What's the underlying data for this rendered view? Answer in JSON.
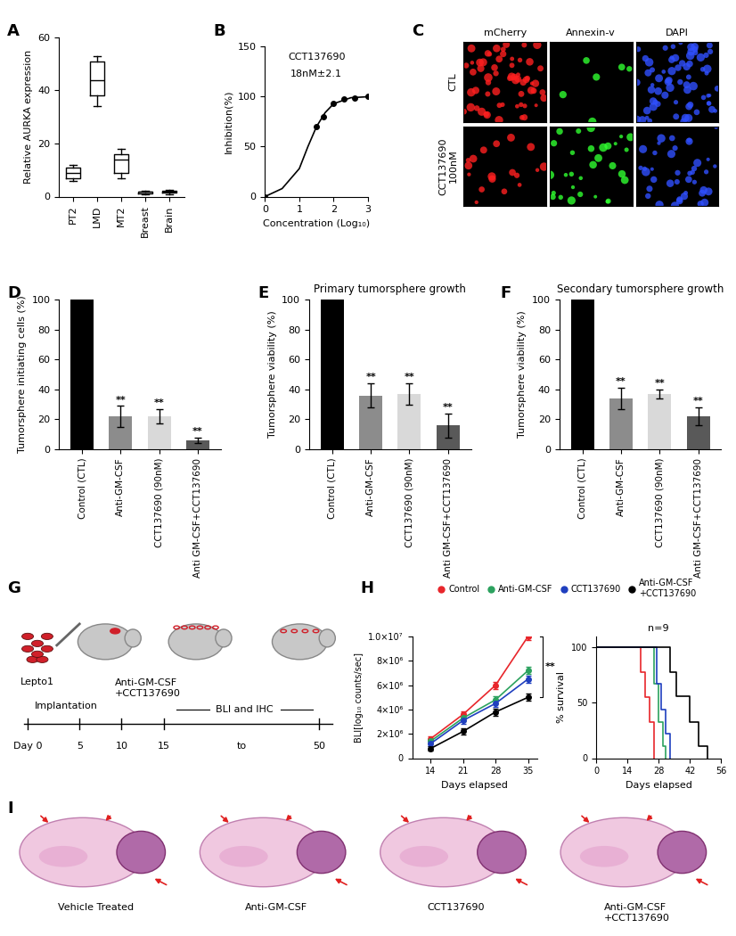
{
  "panel_letters": [
    "A",
    "B",
    "C",
    "D",
    "E",
    "F",
    "G",
    "H",
    "I"
  ],
  "chart_data": [
    {
      "type": "box",
      "categories": [
        "PT2",
        "LMD",
        "MT2",
        "Breast",
        "Brain"
      ],
      "y_label": "Relative AURKA expression",
      "ylim": [
        0,
        60
      ],
      "yticks": [
        0,
        20,
        40,
        60
      ],
      "boxes": [
        {
          "min": 6,
          "q1": 7,
          "median": 9,
          "q3": 11,
          "max": 12
        },
        {
          "min": 34,
          "q1": 38,
          "median": 44,
          "q3": 51,
          "max": 53
        },
        {
          "min": 7,
          "q1": 9,
          "median": 14,
          "q3": 16,
          "max": 18
        },
        {
          "min": 1,
          "q1": 1.3,
          "median": 1.7,
          "q3": 2,
          "max": 2.3
        },
        {
          "min": 1,
          "q1": 1.4,
          "median": 1.8,
          "q3": 2.1,
          "max": 2.5
        }
      ],
      "color": "#000000"
    },
    {
      "type": "line",
      "title": "CCT137690",
      "subtitle": "18nM±2.1",
      "x_label": "Concentration (Log₁₀)",
      "y_label": "Inhibition(%)",
      "xlim": [
        0,
        3
      ],
      "xticks": [
        0,
        1,
        2,
        3
      ],
      "ylim": [
        0,
        150
      ],
      "yticks": [
        0,
        50,
        100,
        150
      ],
      "x": [
        0,
        1.5,
        1.7,
        2.0,
        2.3,
        2.6,
        3.0
      ],
      "values": [
        0,
        70,
        80,
        93,
        98,
        99,
        100
      ],
      "curve": {
        "x": [
          0,
          0.5,
          1.0,
          1.25,
          1.5,
          1.75,
          2.0,
          2.5,
          3.0
        ],
        "values": [
          0,
          8,
          28,
          50,
          70,
          84,
          93,
          99,
          100
        ]
      },
      "marker": "circle",
      "color": "#000000"
    },
    {
      "type": "bar",
      "categories": [
        "Control (CTL)",
        "Anti-GM-CSF",
        "CCT137690 (90nM)",
        "Anti GM-CSF+CCT137690"
      ],
      "y_label": "Tumorsphere initiating cells (%)",
      "ylim": [
        0,
        100
      ],
      "yticks": [
        0,
        20,
        40,
        60,
        80,
        100
      ],
      "values": [
        100,
        22,
        22,
        6
      ],
      "errors": [
        0,
        7,
        5,
        2
      ],
      "significance": [
        null,
        "**",
        "**",
        "**"
      ],
      "colors": [
        "#000000",
        "#8c8c8c",
        "#d9d9d9",
        "#595959"
      ]
    },
    {
      "type": "bar",
      "title": "Primary tumorsphere growth",
      "categories": [
        "Control (CTL)",
        "Anti-GM-CSF",
        "CCT137690 (90nM)",
        "Anti GM-CSF+CCT137690"
      ],
      "y_label": "Tumorsphere viability (%)",
      "ylim": [
        0,
        100
      ],
      "yticks": [
        0,
        20,
        40,
        60,
        80,
        100
      ],
      "values": [
        100,
        36,
        37,
        16
      ],
      "errors": [
        0,
        8,
        7,
        8
      ],
      "significance": [
        null,
        "**",
        "**",
        "**"
      ],
      "colors": [
        "#000000",
        "#8c8c8c",
        "#d9d9d9",
        "#595959"
      ]
    },
    {
      "type": "bar",
      "title": "Secondary tumorsphere growth",
      "categories": [
        "Control (CTL)",
        "Anti-GM-CSF",
        "CCT137690 (90nM)",
        "Anti GM-CSF+CCT137690"
      ],
      "y_label": "Tumorsphere viability (%)",
      "ylim": [
        0,
        100
      ],
      "yticks": [
        0,
        20,
        40,
        60,
        80,
        100
      ],
      "values": [
        100,
        34,
        37,
        22
      ],
      "errors": [
        0,
        7,
        3,
        6
      ],
      "significance": [
        null,
        "**",
        "**",
        "**"
      ],
      "colors": [
        "#000000",
        "#8c8c8c",
        "#d9d9d9",
        "#595959"
      ]
    },
    {
      "type": "line",
      "x_label": "Days elapsed",
      "y_label": "BLI[log₁₀ counts/sec]",
      "x": [
        14,
        21,
        28,
        35
      ],
      "xlim": [
        10,
        37
      ],
      "xticks": [
        14,
        21,
        28,
        35
      ],
      "ylim": [
        0,
        10000000
      ],
      "yticks": [
        0,
        {
          "value": 2000000,
          "label": "2×10⁶"
        },
        {
          "value": 4000000,
          "label": "4×10⁶"
        },
        {
          "value": 6000000,
          "label": "6×10⁶"
        },
        {
          "value": 8000000,
          "label": "8×10⁶"
        },
        {
          "value": 10000000,
          "label": "1.0×10⁷"
        }
      ],
      "legend": "upper center",
      "annotations": [
        "**"
      ],
      "series": [
        {
          "name": "Control",
          "color": "#e8262b",
          "marker": "circle",
          "values": [
            1600000,
            3600000,
            6000000,
            10000000
          ],
          "errors": [
            200000,
            250000,
            300000,
            300000
          ]
        },
        {
          "name": "Anti-GM-CSF",
          "color": "#2ca25f",
          "marker": "circle",
          "values": [
            1400000,
            3300000,
            4800000,
            7200000
          ],
          "errors": [
            200000,
            250000,
            300000,
            300000
          ]
        },
        {
          "name": "CCT137690",
          "color": "#1f3fbf",
          "marker": "circle",
          "values": [
            1200000,
            3100000,
            4500000,
            6500000
          ],
          "errors": [
            200000,
            250000,
            300000,
            300000
          ]
        },
        {
          "name": "Anti-GM-CSF\n+CCT137690",
          "color": "#000000",
          "marker": "circle",
          "values": [
            800000,
            2200000,
            3800000,
            5000000
          ],
          "errors": [
            200000,
            250000,
            300000,
            300000
          ]
        }
      ]
    },
    {
      "type": "step",
      "subtitle": "n=9",
      "x_label": "Days elapsed",
      "y_label": "% survival",
      "xlim": [
        0,
        56
      ],
      "xticks": [
        0,
        14,
        28,
        42,
        56
      ],
      "ylim": [
        0,
        110
      ],
      "yticks": [
        0,
        50,
        100
      ],
      "line_style": "solid",
      "series": [
        {
          "name": "Control",
          "color": "#e8262b",
          "x": [
            0,
            20,
            22,
            24,
            26
          ],
          "values": [
            100,
            78,
            55,
            33,
            0
          ]
        },
        {
          "name": "Anti-GM-CSF",
          "color": "#2ca25f",
          "x": [
            0,
            26,
            28,
            30,
            31
          ],
          "values": [
            100,
            67,
            33,
            11,
            0
          ]
        },
        {
          "name": "CCT137690",
          "color": "#1f3fbf",
          "x": [
            0,
            27,
            29,
            31,
            33
          ],
          "values": [
            100,
            67,
            44,
            22,
            0
          ]
        },
        {
          "name": "Anti-GM-CSF\n+CCT137690",
          "color": "#000000",
          "x": [
            0,
            33,
            36,
            42,
            46,
            50
          ],
          "values": [
            100,
            78,
            56,
            33,
            11,
            0
          ]
        }
      ]
    }
  ],
  "microscopy": {
    "columns": [
      "mCherry",
      "Annexin-v",
      "DAPI"
    ],
    "rows": [
      "CTL",
      "CCT137690\n100nM"
    ]
  },
  "schematic": {
    "cells": "Lepto1",
    "implantation": "Implantation",
    "treatment": "Anti-GM-CSF\n+CCT137690",
    "readout": "BLI and IHC",
    "days": [
      "Day 0",
      "5",
      "10",
      "15",
      "50"
    ],
    "to": "to"
  },
  "histology": {
    "labels": [
      "Vehicle Treated",
      "Anti-GM-CSF",
      "CCT137690",
      "Anti-GM-CSF\n+CCT137690"
    ]
  }
}
